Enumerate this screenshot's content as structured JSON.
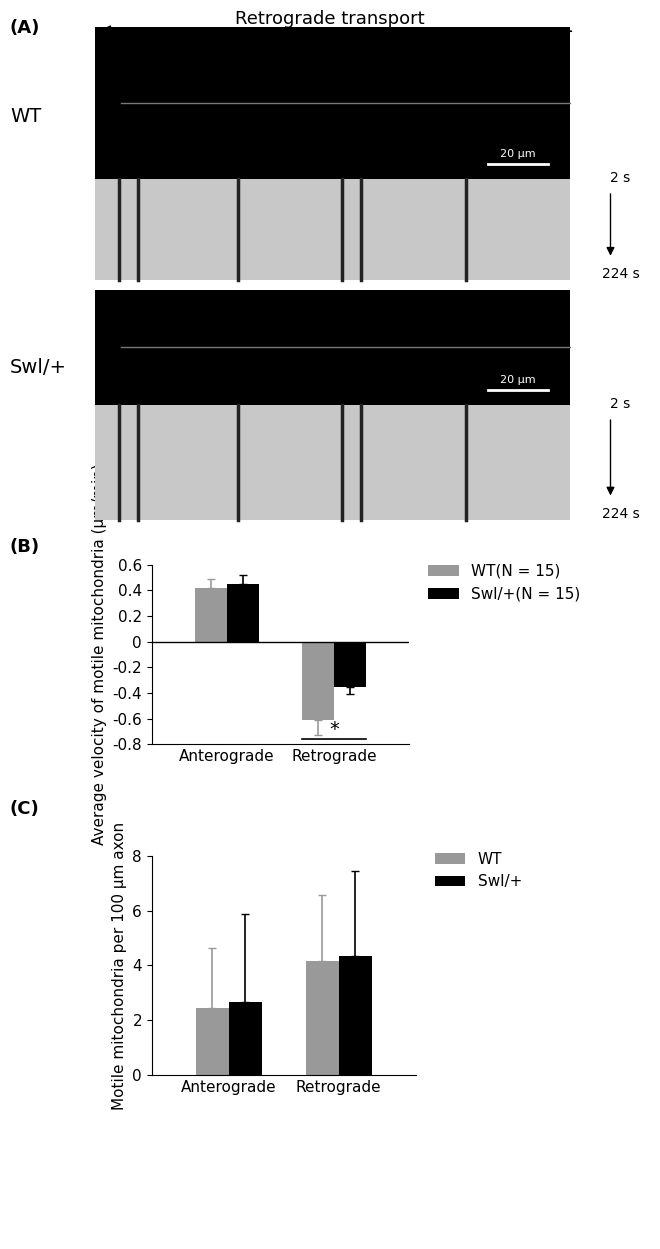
{
  "image_panel": {
    "panel_label": "(A)",
    "direction_label": "Retrograde transport",
    "rows": [
      {
        "name": "WT",
        "scale_bar": "20 μm",
        "time_start": "2 s",
        "time_end": "224 s"
      },
      {
        "name": "Swl/+",
        "scale_bar": "20 μm",
        "time_start": "2 s",
        "time_end": "224 s"
      }
    ]
  },
  "chart_data": [
    {
      "type": "bar",
      "panel_label": "(B)",
      "y_label": "Average velocity of motile mitochondria (μm/min)",
      "categories": [
        "Anterograde",
        "Retrograde"
      ],
      "series": [
        {
          "name": "WT(N = 15)",
          "color": "#999999",
          "values": [
            0.42,
            -0.61
          ],
          "errors": [
            0.07,
            0.12
          ]
        },
        {
          "name": "Swl/+(N = 15)",
          "color": "#000000",
          "values": [
            0.45,
            -0.35
          ],
          "errors": [
            0.07,
            0.06
          ]
        }
      ],
      "ylim": [
        -0.8,
        0.6
      ],
      "yticks": [
        -0.8,
        -0.6,
        -0.4,
        -0.2,
        0,
        0.2,
        0.4,
        0.6
      ],
      "significance": {
        "category": "Retrograde",
        "text": "*"
      },
      "legend": "upper left"
    },
    {
      "type": "bar",
      "panel_label": "(C)",
      "y_label": "Motile mitochondria per 100 μm axon",
      "categories": [
        "Anterograde",
        "Retrograde"
      ],
      "series": [
        {
          "name": "WT",
          "color": "#999999",
          "values": [
            2.45,
            4.15
          ],
          "errors": [
            2.2,
            2.4
          ]
        },
        {
          "name": "Swl/+",
          "color": "#000000",
          "values": [
            2.68,
            4.35
          ],
          "errors": [
            3.2,
            3.1
          ]
        }
      ],
      "ylim": [
        0,
        8
      ],
      "yticks": [
        0,
        2,
        4,
        6,
        8
      ],
      "legend": "upper left"
    }
  ]
}
